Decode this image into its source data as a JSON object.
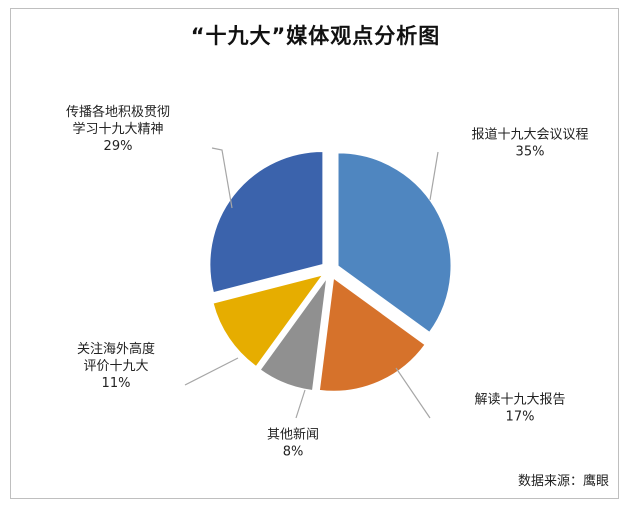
{
  "chart_data": {
    "type": "pie",
    "title": "“十九大”媒体观点分析图",
    "slices": [
      {
        "label_lines": [
          "报道十九大会议议程"
        ],
        "percent_label": "35%",
        "value": 35,
        "color": "#4f86c0"
      },
      {
        "label_lines": [
          "解读十九大报告"
        ],
        "percent_label": "17%",
        "value": 17,
        "color": "#d6722b"
      },
      {
        "label_lines": [
          "其他新闻"
        ],
        "percent_label": "8%",
        "value": 8,
        "color": "#909090"
      },
      {
        "label_lines": [
          "关注海外高度",
          "评价十九大"
        ],
        "percent_label": "11%",
        "value": 11,
        "color": "#e6ad00"
      },
      {
        "label_lines": [
          "传播各地积极贯彻",
          "学习十九大精神"
        ],
        "percent_label": "29%",
        "value": 29,
        "color": "#3b63ac"
      }
    ],
    "source": "数据来源：鹰眼"
  }
}
